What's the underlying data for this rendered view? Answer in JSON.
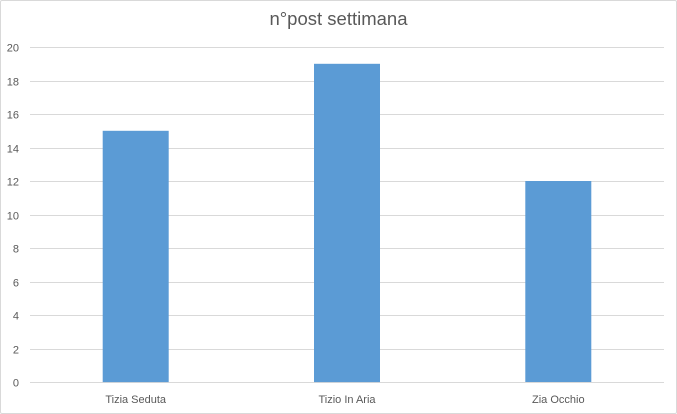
{
  "chart_data": {
    "type": "bar",
    "title": "n°post settimana",
    "categories": [
      "Tizia Seduta",
      "Tizio In Aria",
      "Zia Occhio"
    ],
    "values": [
      15,
      19,
      12
    ],
    "xlabel": "",
    "ylabel": "",
    "ylim": [
      0,
      20
    ],
    "yticks": [
      0,
      2,
      4,
      6,
      8,
      10,
      12,
      14,
      16,
      18,
      20
    ],
    "grid": true,
    "legend": "none",
    "bar_color": "#5b9bd5",
    "grid_color": "#d9d9d9",
    "text_color": "#595959"
  }
}
